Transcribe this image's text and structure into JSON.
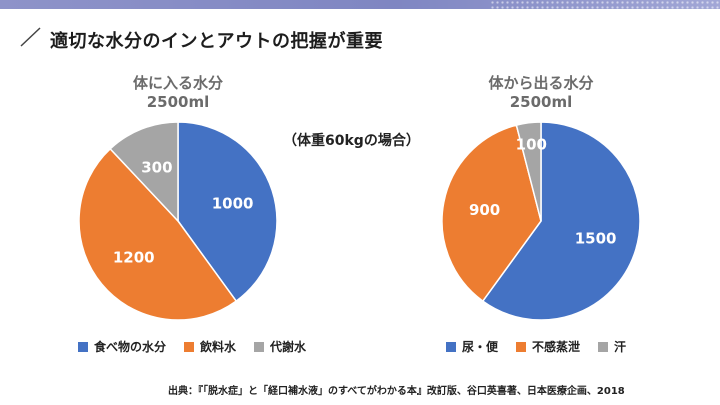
{
  "title": "適切な水分のインとアウトの把握が重要",
  "note": "（体重60kgの場合）",
  "source": "出典：『「脱水症」と「経口補水液」のすべてがわかる本』改訂版、谷口英喜著、日本医療企画、2018",
  "chart_data": [
    {
      "type": "pie",
      "title": "体に入る水分",
      "subtitle": "2500ml",
      "categories": [
        "食べ物の水分",
        "飲料水",
        "代謝水"
      ],
      "values": [
        1000,
        1200,
        300
      ],
      "colors": [
        "#4472c4",
        "#ed7d31",
        "#a5a5a5"
      ],
      "legend": "bottom"
    },
    {
      "type": "pie",
      "title": "体から出る水分",
      "subtitle": "2500ml",
      "categories": [
        "尿・便",
        "不感蒸泄",
        "汗"
      ],
      "values": [
        1500,
        900,
        100
      ],
      "colors": [
        "#4472c4",
        "#ed7d31",
        "#a5a5a5"
      ],
      "legend": "bottom"
    }
  ]
}
